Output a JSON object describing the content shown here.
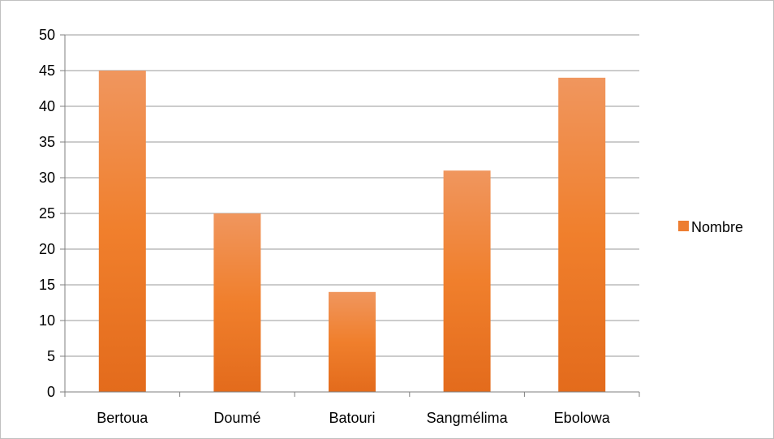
{
  "chart_data": {
    "type": "bar",
    "categories": [
      "Bertoua",
      "Doumé",
      "Batouri",
      "Sangmélima",
      "Ebolowa"
    ],
    "series": [
      {
        "name": "Nombre",
        "values": [
          45,
          25,
          14,
          31,
          44
        ],
        "color": "#ed7d31"
      }
    ],
    "title": "",
    "xlabel": "",
    "ylabel": "",
    "ylim": [
      0,
      50
    ],
    "yticks": [
      0,
      5,
      10,
      15,
      20,
      25,
      30,
      35,
      40,
      45,
      50
    ],
    "grid": true,
    "legend_position": "right"
  }
}
